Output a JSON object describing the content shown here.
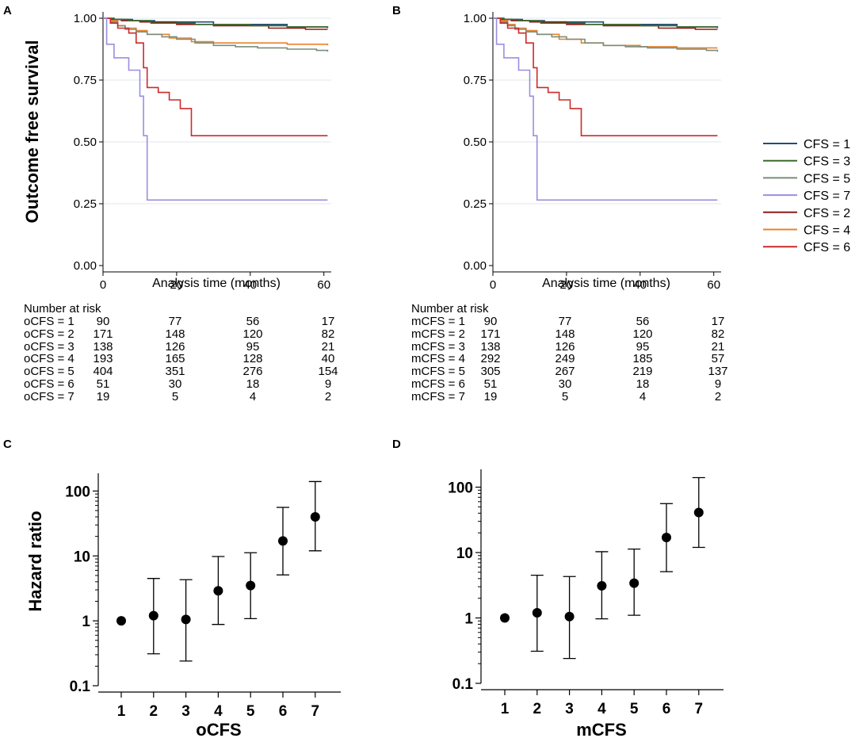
{
  "panels": {
    "A": {
      "letter": "A"
    },
    "B": {
      "letter": "B"
    },
    "C": {
      "letter": "C"
    },
    "D": {
      "letter": "D"
    }
  },
  "colors": {
    "CFS = 1": "#1f4e79",
    "CFS = 2": "#8b1a1a",
    "CFS = 3": "#3a6b2a",
    "CFS = 4": "#e8832a",
    "CFS = 5": "#7a8c7c",
    "CFS = 6": "#cc2a2a",
    "CFS = 7": "#9a8ee0"
  },
  "chart_data": [
    {
      "panel": "A",
      "type": "line",
      "subtype": "kaplan-meier step",
      "ylabel": "Outcome free survival",
      "xlabel": "Analysis time (months)",
      "xlim": [
        0,
        62
      ],
      "ylim": [
        0,
        1
      ],
      "xticks": [
        "0",
        "20",
        "40",
        "60"
      ],
      "yticks": [
        "0.00",
        "0.25",
        "0.50",
        "0.75",
        "1.00"
      ],
      "legend": {
        "position": "right",
        "entries": [
          "CFS = 1",
          "CFS = 3",
          "CFS = 5",
          "CFS = 7",
          "CFS = 2",
          "CFS = 4",
          "CFS = 6"
        ]
      },
      "series": [
        {
          "name": "CFS = 1",
          "steps": [
            [
              0,
              1.0
            ],
            [
              3,
              0.995
            ],
            [
              8,
              0.99
            ],
            [
              14,
              0.985
            ],
            [
              30,
              0.975
            ],
            [
              50,
              0.965
            ],
            [
              61,
              0.96
            ]
          ]
        },
        {
          "name": "CFS = 2",
          "steps": [
            [
              0,
              1.0
            ],
            [
              2,
              0.995
            ],
            [
              5,
              0.99
            ],
            [
              10,
              0.985
            ],
            [
              20,
              0.975
            ],
            [
              30,
              0.97
            ],
            [
              45,
              0.96
            ],
            [
              55,
              0.955
            ],
            [
              61,
              0.955
            ]
          ]
        },
        {
          "name": "CFS = 3",
          "steps": [
            [
              0,
              1.0
            ],
            [
              3,
              0.995
            ],
            [
              7,
              0.99
            ],
            [
              13,
              0.98
            ],
            [
              25,
              0.975
            ],
            [
              40,
              0.97
            ],
            [
              50,
              0.965
            ],
            [
              61,
              0.965
            ]
          ]
        },
        {
          "name": "CFS = 4",
          "steps": [
            [
              0,
              1.0
            ],
            [
              2,
              0.99
            ],
            [
              4,
              0.97
            ],
            [
              6,
              0.96
            ],
            [
              9,
              0.95
            ],
            [
              12,
              0.935
            ],
            [
              18,
              0.92
            ],
            [
              24,
              0.905
            ],
            [
              30,
              0.9
            ],
            [
              40,
              0.9
            ],
            [
              50,
              0.895
            ],
            [
              61,
              0.89
            ]
          ]
        },
        {
          "name": "CFS = 5",
          "steps": [
            [
              0,
              1.0
            ],
            [
              2,
              0.985
            ],
            [
              4,
              0.97
            ],
            [
              6,
              0.955
            ],
            [
              9,
              0.945
            ],
            [
              12,
              0.935
            ],
            [
              16,
              0.925
            ],
            [
              20,
              0.915
            ],
            [
              25,
              0.9
            ],
            [
              30,
              0.89
            ],
            [
              36,
              0.885
            ],
            [
              42,
              0.88
            ],
            [
              50,
              0.875
            ],
            [
              58,
              0.87
            ],
            [
              61,
              0.865
            ]
          ]
        },
        {
          "name": "CFS = 6",
          "steps": [
            [
              0,
              1.0
            ],
            [
              2,
              0.98
            ],
            [
              4,
              0.96
            ],
            [
              7,
              0.94
            ],
            [
              9,
              0.9
            ],
            [
              11,
              0.8
            ],
            [
              12,
              0.72
            ],
            [
              15,
              0.7
            ],
            [
              18,
              0.67
            ],
            [
              21,
              0.635
            ],
            [
              24,
              0.525
            ],
            [
              61,
              0.525
            ]
          ]
        },
        {
          "name": "CFS = 7",
          "steps": [
            [
              0,
              1.0
            ],
            [
              1,
              0.895
            ],
            [
              3,
              0.84
            ],
            [
              7,
              0.79
            ],
            [
              10,
              0.685
            ],
            [
              11,
              0.525
            ],
            [
              12,
              0.265
            ],
            [
              61,
              0.265
            ]
          ]
        }
      ]
    },
    {
      "panel": "B",
      "type": "line",
      "subtype": "kaplan-meier step",
      "xlabel": "Analysis time (months)",
      "xlim": [
        0,
        62
      ],
      "ylim": [
        0,
        1
      ],
      "xticks": [
        "0",
        "20",
        "40",
        "60"
      ],
      "yticks": [
        "0.00",
        "0.25",
        "0.50",
        "0.75",
        "1.00"
      ],
      "series": [
        {
          "name": "CFS = 1",
          "steps": [
            [
              0,
              1.0
            ],
            [
              3,
              0.995
            ],
            [
              8,
              0.99
            ],
            [
              14,
              0.985
            ],
            [
              30,
              0.975
            ],
            [
              50,
              0.965
            ],
            [
              61,
              0.96
            ]
          ]
        },
        {
          "name": "CFS = 2",
          "steps": [
            [
              0,
              1.0
            ],
            [
              2,
              0.995
            ],
            [
              5,
              0.99
            ],
            [
              10,
              0.985
            ],
            [
              20,
              0.975
            ],
            [
              30,
              0.97
            ],
            [
              45,
              0.96
            ],
            [
              55,
              0.955
            ],
            [
              61,
              0.955
            ]
          ]
        },
        {
          "name": "CFS = 3",
          "steps": [
            [
              0,
              1.0
            ],
            [
              3,
              0.995
            ],
            [
              7,
              0.99
            ],
            [
              13,
              0.98
            ],
            [
              25,
              0.975
            ],
            [
              40,
              0.97
            ],
            [
              50,
              0.965
            ],
            [
              61,
              0.965
            ]
          ]
        },
        {
          "name": "CFS = 4",
          "steps": [
            [
              0,
              1.0
            ],
            [
              2,
              0.99
            ],
            [
              4,
              0.975
            ],
            [
              6,
              0.96
            ],
            [
              9,
              0.95
            ],
            [
              12,
              0.935
            ],
            [
              18,
              0.915
            ],
            [
              24,
              0.9
            ],
            [
              30,
              0.89
            ],
            [
              40,
              0.885
            ],
            [
              50,
              0.88
            ],
            [
              61,
              0.88
            ]
          ]
        },
        {
          "name": "CFS = 5",
          "steps": [
            [
              0,
              1.0
            ],
            [
              2,
              0.985
            ],
            [
              4,
              0.97
            ],
            [
              6,
              0.955
            ],
            [
              9,
              0.945
            ],
            [
              12,
              0.935
            ],
            [
              16,
              0.925
            ],
            [
              20,
              0.915
            ],
            [
              25,
              0.9
            ],
            [
              30,
              0.89
            ],
            [
              36,
              0.885
            ],
            [
              42,
              0.88
            ],
            [
              50,
              0.875
            ],
            [
              58,
              0.87
            ],
            [
              61,
              0.865
            ]
          ]
        },
        {
          "name": "CFS = 6",
          "steps": [
            [
              0,
              1.0
            ],
            [
              2,
              0.98
            ],
            [
              4,
              0.96
            ],
            [
              7,
              0.94
            ],
            [
              9,
              0.9
            ],
            [
              11,
              0.8
            ],
            [
              12,
              0.72
            ],
            [
              15,
              0.7
            ],
            [
              18,
              0.67
            ],
            [
              21,
              0.635
            ],
            [
              24,
              0.525
            ],
            [
              61,
              0.525
            ]
          ]
        },
        {
          "name": "CFS = 7",
          "steps": [
            [
              0,
              1.0
            ],
            [
              1,
              0.895
            ],
            [
              3,
              0.84
            ],
            [
              7,
              0.79
            ],
            [
              10,
              0.685
            ],
            [
              11,
              0.525
            ],
            [
              12,
              0.265
            ],
            [
              61,
              0.265
            ]
          ]
        }
      ]
    },
    {
      "panel": "C",
      "type": "scatter",
      "subtype": "point estimate with error bars, log y-axis",
      "ylabel": "Hazard ratio",
      "xlabel": "oCFS",
      "yscale": "log",
      "ylim": [
        0.1,
        150
      ],
      "xticks": [
        "1",
        "2",
        "3",
        "4",
        "5",
        "6",
        "7"
      ],
      "yticks": [
        "0.1",
        "1",
        "10",
        "100"
      ],
      "points": [
        {
          "x": 1,
          "hr": 1.0,
          "lo": 1.0,
          "hi": 1.0
        },
        {
          "x": 2,
          "hr": 1.2,
          "lo": 0.31,
          "hi": 4.5
        },
        {
          "x": 3,
          "hr": 1.05,
          "lo": 0.24,
          "hi": 4.3
        },
        {
          "x": 4,
          "hr": 2.9,
          "lo": 0.88,
          "hi": 9.8
        },
        {
          "x": 5,
          "hr": 3.5,
          "lo": 1.08,
          "hi": 11.2
        },
        {
          "x": 6,
          "hr": 17,
          "lo": 5.1,
          "hi": 56
        },
        {
          "x": 7,
          "hr": 40,
          "lo": 12,
          "hi": 140
        }
      ]
    },
    {
      "panel": "D",
      "type": "scatter",
      "subtype": "point estimate with error bars, log y-axis",
      "xlabel": "mCFS",
      "yscale": "log",
      "ylim": [
        0.1,
        150
      ],
      "xticks": [
        "1",
        "2",
        "3",
        "4",
        "5",
        "6",
        "7"
      ],
      "yticks": [
        "0.1",
        "1",
        "10",
        "100"
      ],
      "points": [
        {
          "x": 1,
          "hr": 1.0,
          "lo": 1.0,
          "hi": 1.0
        },
        {
          "x": 2,
          "hr": 1.2,
          "lo": 0.31,
          "hi": 4.5
        },
        {
          "x": 3,
          "hr": 1.05,
          "lo": 0.24,
          "hi": 4.3
        },
        {
          "x": 4,
          "hr": 3.1,
          "lo": 0.97,
          "hi": 10.3
        },
        {
          "x": 5,
          "hr": 3.4,
          "lo": 1.1,
          "hi": 11.3
        },
        {
          "x": 6,
          "hr": 17,
          "lo": 5.1,
          "hi": 56
        },
        {
          "x": 7,
          "hr": 41,
          "lo": 12,
          "hi": 140
        }
      ]
    }
  ],
  "risk_tables": {
    "A": {
      "title": "Number at risk",
      "rows": [
        {
          "label": "oCFS = 1",
          "values": [
            "90",
            "77",
            "56",
            "17"
          ]
        },
        {
          "label": "oCFS = 2",
          "values": [
            "171",
            "148",
            "120",
            "82"
          ]
        },
        {
          "label": "oCFS = 3",
          "values": [
            "138",
            "126",
            "95",
            "21"
          ]
        },
        {
          "label": "oCFS = 4",
          "values": [
            "193",
            "165",
            "128",
            "40"
          ]
        },
        {
          "label": "oCFS = 5",
          "values": [
            "404",
            "351",
            "276",
            "154"
          ]
        },
        {
          "label": "oCFS = 6",
          "values": [
            "51",
            "30",
            "18",
            "9"
          ]
        },
        {
          "label": "oCFS = 7",
          "values": [
            "19",
            "5",
            "4",
            "2"
          ]
        }
      ]
    },
    "B": {
      "title": "Number at risk",
      "rows": [
        {
          "label": "mCFS = 1",
          "values": [
            "90",
            "77",
            "56",
            "17"
          ]
        },
        {
          "label": "mCFS = 2",
          "values": [
            "171",
            "148",
            "120",
            "82"
          ]
        },
        {
          "label": "mCFS = 3",
          "values": [
            "138",
            "126",
            "95",
            "21"
          ]
        },
        {
          "label": "mCFS = 4",
          "values": [
            "292",
            "249",
            "185",
            "57"
          ]
        },
        {
          "label": "mCFS = 5",
          "values": [
            "305",
            "267",
            "219",
            "137"
          ]
        },
        {
          "label": "mCFS = 6",
          "values": [
            "51",
            "30",
            "18",
            "9"
          ]
        },
        {
          "label": "mCFS = 7",
          "values": [
            "19",
            "5",
            "4",
            "2"
          ]
        }
      ]
    }
  }
}
